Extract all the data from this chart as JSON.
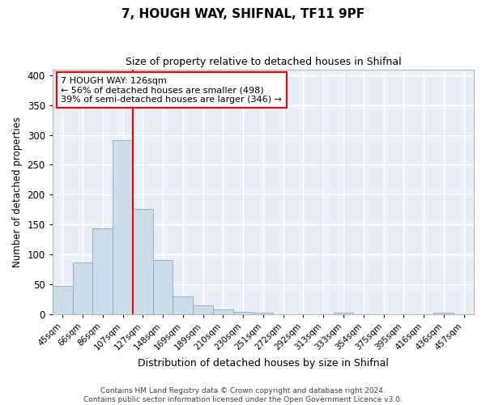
{
  "title": "7, HOUGH WAY, SHIFNAL, TF11 9PF",
  "subtitle": "Size of property relative to detached houses in Shifnal",
  "xlabel": "Distribution of detached houses by size in Shifnal",
  "ylabel": "Number of detached properties",
  "bin_labels": [
    "45sqm",
    "66sqm",
    "86sqm",
    "107sqm",
    "127sqm",
    "148sqm",
    "169sqm",
    "189sqm",
    "210sqm",
    "230sqm",
    "251sqm",
    "272sqm",
    "292sqm",
    "313sqm",
    "333sqm",
    "354sqm",
    "375sqm",
    "395sqm",
    "416sqm",
    "436sqm",
    "457sqm"
  ],
  "bar_heights": [
    47,
    86,
    144,
    292,
    176,
    91,
    30,
    14,
    8,
    4,
    2,
    0,
    0,
    0,
    2,
    0,
    0,
    0,
    0,
    2,
    0
  ],
  "bar_color": "#ccdce8",
  "bar_edge_color": "#88aac4",
  "vline_color": "red",
  "annotation_line1": "7 HOUGH WAY: 126sqm",
  "annotation_line2": "← 56% of detached houses are smaller (498)",
  "annotation_line3": "39% of semi-detached houses are larger (346) →",
  "ylim": [
    0,
    410
  ],
  "yticks": [
    0,
    50,
    100,
    150,
    200,
    250,
    300,
    350,
    400
  ],
  "bg_color": "#e8eff6",
  "footer_line1": "Contains HM Land Registry data © Crown copyright and database right 2024.",
  "footer_line2": "Contains public sector information licensed under the Open Government Licence v3.0."
}
